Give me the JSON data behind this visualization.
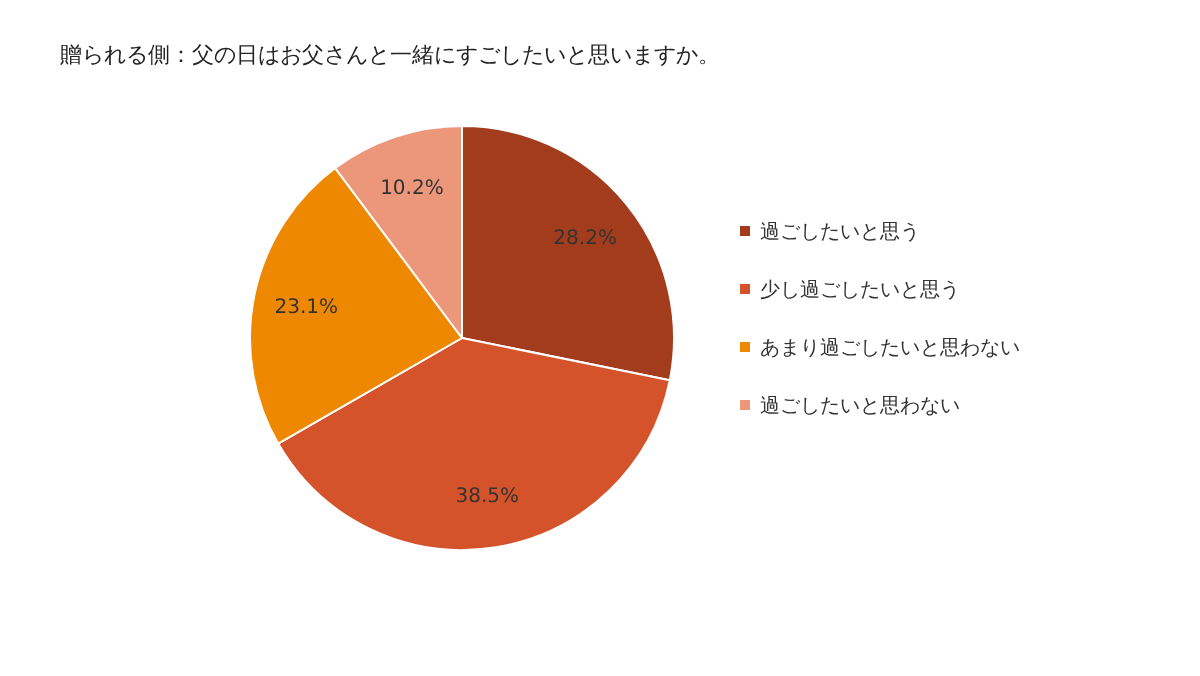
{
  "chart_data": {
    "type": "pie",
    "title": "贈られる側：父の日はお父さんと一緒にすごしたいと思いますか。",
    "categories": [
      "過ごしたいと思う",
      "少し過ごしたいと思う",
      "あまり過ごしたいと思わない",
      "過ごしたいと思わない"
    ],
    "values": [
      28.2,
      38.5,
      23.1,
      10.2
    ],
    "colors": [
      "#a33c1c",
      "#d4532a",
      "#ee8800",
      "#ec967a"
    ],
    "value_labels": [
      "28.2%",
      "38.5%",
      "23.1%",
      "10.2%"
    ],
    "legend": "right"
  }
}
